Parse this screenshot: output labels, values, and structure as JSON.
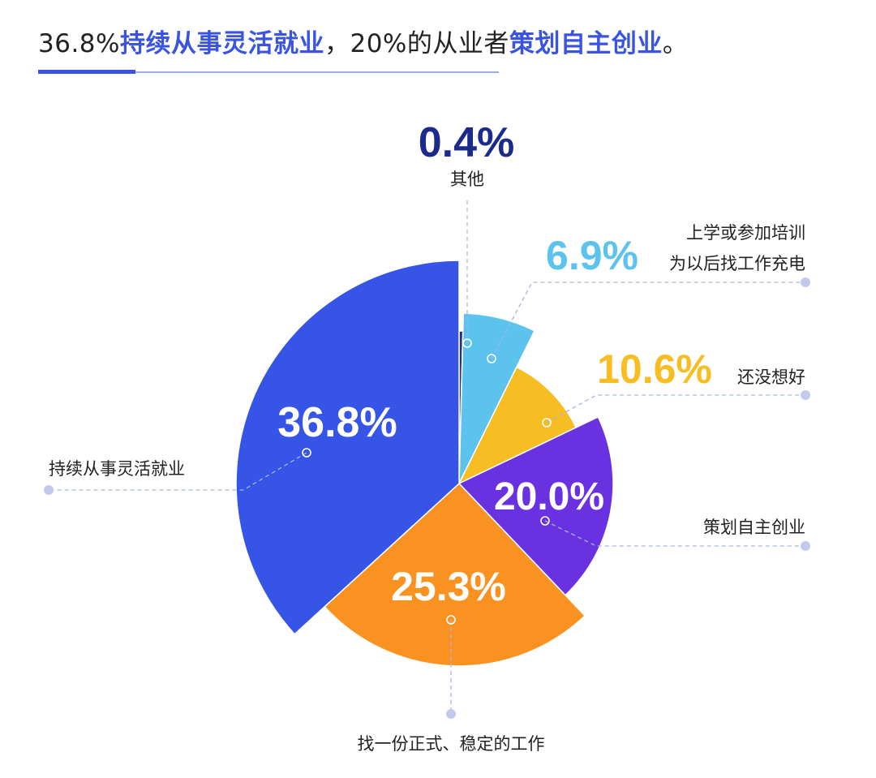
{
  "title": {
    "p1": "36.8%",
    "p2": "持续从事灵活就业",
    "p3": "，20%的从业者",
    "p4": "策划自主创业",
    "p5": "。"
  },
  "chart_data": {
    "type": "pie",
    "slices": [
      {
        "label": "其他",
        "value": 0.4,
        "display": "0.4%",
        "color": "#1b2a8c"
      },
      {
        "label": "上学或参加培训为以后找工作充电",
        "label_lines": [
          "上学或参加培训",
          "为以后找工作充电"
        ],
        "value": 6.9,
        "display": "6.9%",
        "color": "#5bc3ee"
      },
      {
        "label": "还没想好",
        "value": 10.6,
        "display": "10.6%",
        "color": "#f8bd22"
      },
      {
        "label": "策划自主创业",
        "value": 20.0,
        "display": "20.0%",
        "color": "#6a31e0"
      },
      {
        "label": "找一份正式、稳定的工作",
        "value": 25.3,
        "display": "25.3%",
        "color": "#fa9222"
      },
      {
        "label": "持续从事灵活就业",
        "value": 36.8,
        "display": "36.8%",
        "color": "#3654e6"
      }
    ]
  },
  "colors": {
    "accent": "#3a54e0",
    "title_rule": "#3a54e0",
    "leader": "#a9b3e6"
  }
}
